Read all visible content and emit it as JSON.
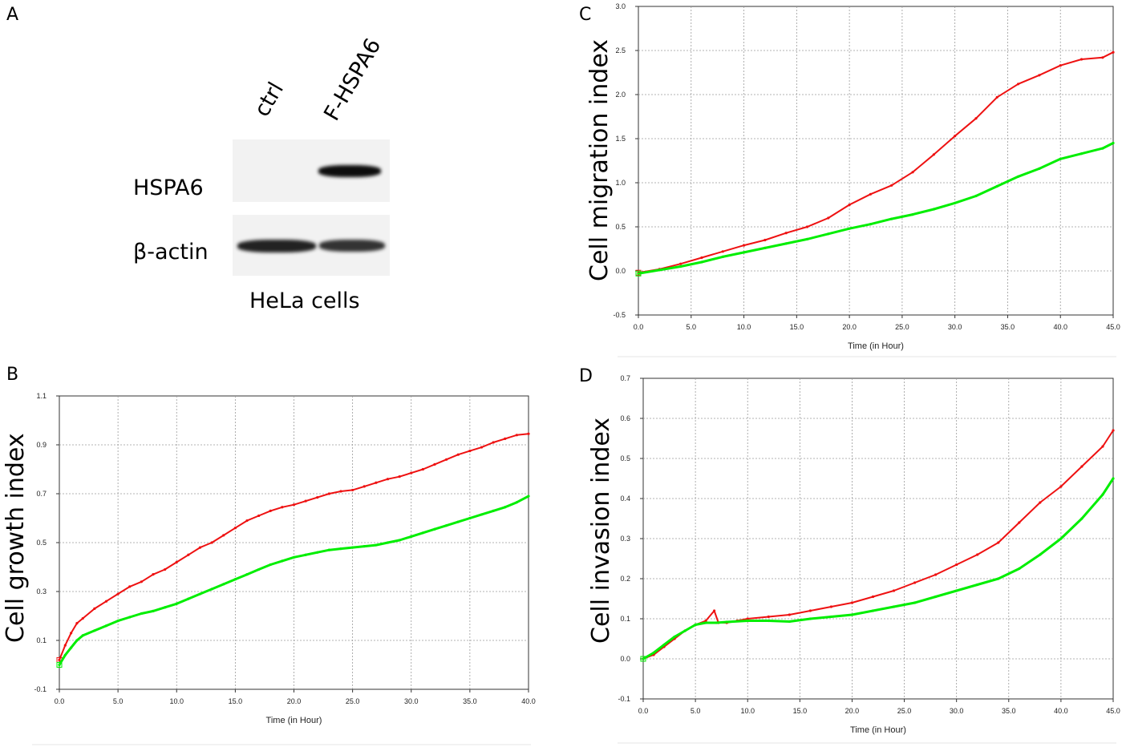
{
  "panel_a": {
    "label": "A",
    "lanes": [
      "ctrl",
      "F-HSPA6"
    ],
    "rows": [
      "HSPA6",
      "β-actin"
    ],
    "caption": "HeLa cells"
  },
  "colors": {
    "ctrl": "#00ee00",
    "f_hspa6": "#ee1111",
    "grid": "#9a9a9a"
  },
  "chart_data": [
    {
      "id": "B",
      "type": "line",
      "panel_label": "B",
      "title": "",
      "xlabel": "Time (in Hour)",
      "ylabel": "Cell growth index",
      "xlim": [
        0,
        40
      ],
      "ylim": [
        -0.1,
        1.1
      ],
      "xticks": [
        "0.0",
        "5.0",
        "10.0",
        "15.0",
        "20.0",
        "25.0",
        "30.0",
        "35.0",
        "40.0"
      ],
      "yticks": [
        "-0.1",
        "0.1",
        "0.3",
        "0.5",
        "0.7",
        "0.9",
        "1.1"
      ],
      "series": [
        {
          "name": "F-HSPA6",
          "color": "#ee1111",
          "x": [
            0,
            0.5,
            1,
            1.5,
            2,
            3,
            4,
            5,
            6,
            7,
            8,
            9,
            10,
            11,
            12,
            13,
            14,
            15,
            16,
            17,
            18,
            19,
            20,
            21,
            22,
            23,
            24,
            25,
            26,
            27,
            28,
            29,
            30,
            31,
            32,
            33,
            34,
            35,
            36,
            37,
            38,
            39,
            40
          ],
          "y": [
            0.02,
            0.08,
            0.13,
            0.17,
            0.19,
            0.23,
            0.26,
            0.29,
            0.32,
            0.34,
            0.37,
            0.39,
            0.42,
            0.45,
            0.48,
            0.5,
            0.53,
            0.56,
            0.59,
            0.61,
            0.63,
            0.645,
            0.655,
            0.67,
            0.685,
            0.7,
            0.71,
            0.715,
            0.73,
            0.745,
            0.76,
            0.77,
            0.785,
            0.8,
            0.82,
            0.84,
            0.86,
            0.875,
            0.89,
            0.91,
            0.925,
            0.94,
            0.945
          ]
        },
        {
          "name": "ctrl",
          "color": "#00ee00",
          "x": [
            0,
            0.5,
            1,
            1.5,
            2,
            3,
            4,
            5,
            6,
            7,
            8,
            9,
            10,
            11,
            12,
            13,
            14,
            15,
            16,
            17,
            18,
            19,
            20,
            21,
            22,
            23,
            24,
            25,
            26,
            27,
            28,
            29,
            30,
            31,
            32,
            33,
            34,
            35,
            36,
            37,
            38,
            39,
            40
          ],
          "y": [
            0.0,
            0.04,
            0.07,
            0.1,
            0.12,
            0.14,
            0.16,
            0.18,
            0.195,
            0.21,
            0.22,
            0.235,
            0.25,
            0.27,
            0.29,
            0.31,
            0.33,
            0.35,
            0.37,
            0.39,
            0.41,
            0.425,
            0.44,
            0.45,
            0.46,
            0.47,
            0.475,
            0.48,
            0.485,
            0.49,
            0.5,
            0.51,
            0.525,
            0.54,
            0.555,
            0.57,
            0.585,
            0.6,
            0.615,
            0.63,
            0.645,
            0.665,
            0.69
          ]
        }
      ]
    },
    {
      "id": "C",
      "type": "line",
      "panel_label": "C",
      "title": "",
      "xlabel": "Time (in Hour)",
      "ylabel": "Cell migration index",
      "xlim": [
        0,
        45
      ],
      "ylim": [
        -0.5,
        3.0
      ],
      "xticks": [
        "0.0",
        "5.0",
        "10.0",
        "15.0",
        "20.0",
        "25.0",
        "30.0",
        "35.0",
        "40.0",
        "45.0"
      ],
      "yticks": [
        "-0.5",
        "0.0",
        "0.5",
        "1.0",
        "1.5",
        "2.0",
        "2.5",
        "3.0"
      ],
      "series": [
        {
          "name": "F-HSPA6",
          "color": "#ee1111",
          "x": [
            0,
            2,
            4,
            6,
            8,
            10,
            12,
            14,
            16,
            18,
            20,
            22,
            24,
            26,
            28,
            30,
            32,
            34,
            36,
            38,
            40,
            42,
            44,
            45
          ],
          "y": [
            -0.02,
            0.02,
            0.08,
            0.15,
            0.22,
            0.29,
            0.35,
            0.43,
            0.5,
            0.6,
            0.75,
            0.87,
            0.97,
            1.12,
            1.32,
            1.53,
            1.73,
            1.97,
            2.12,
            2.22,
            2.33,
            2.4,
            2.42,
            2.48
          ]
        },
        {
          "name": "ctrl",
          "color": "#00ee00",
          "x": [
            0,
            2,
            4,
            6,
            8,
            10,
            12,
            14,
            16,
            18,
            20,
            22,
            24,
            26,
            28,
            30,
            32,
            34,
            36,
            38,
            40,
            42,
            44,
            45
          ],
          "y": [
            -0.03,
            0.01,
            0.05,
            0.1,
            0.16,
            0.21,
            0.26,
            0.31,
            0.36,
            0.42,
            0.48,
            0.53,
            0.59,
            0.64,
            0.7,
            0.77,
            0.85,
            0.96,
            1.07,
            1.16,
            1.27,
            1.33,
            1.39,
            1.45
          ]
        }
      ]
    },
    {
      "id": "D",
      "type": "line",
      "panel_label": "D",
      "title": "",
      "xlabel": "Time (in Hour)",
      "ylabel": "Cell invasion index",
      "xlim": [
        0,
        45
      ],
      "ylim": [
        -0.1,
        0.7
      ],
      "xticks": [
        "0.0",
        "5.0",
        "10.0",
        "15.0",
        "20.0",
        "25.0",
        "30.0",
        "35.0",
        "40.0",
        "45.0"
      ],
      "yticks": [
        "-0.1",
        "0.0",
        "0.1",
        "0.2",
        "0.3",
        "0.4",
        "0.5",
        "0.6",
        "0.7"
      ],
      "series": [
        {
          "name": "F-HSPA6",
          "color": "#ee1111",
          "x": [
            0,
            1,
            2,
            3,
            4,
            5,
            6,
            6.8,
            7.2,
            8,
            9,
            10,
            12,
            14,
            16,
            18,
            20,
            22,
            24,
            26,
            28,
            30,
            32,
            34,
            36,
            38,
            40,
            42,
            44,
            45
          ],
          "y": [
            0.0,
            0.01,
            0.03,
            0.05,
            0.07,
            0.085,
            0.095,
            0.12,
            0.09,
            0.09,
            0.095,
            0.1,
            0.105,
            0.11,
            0.12,
            0.13,
            0.14,
            0.155,
            0.17,
            0.19,
            0.21,
            0.235,
            0.26,
            0.29,
            0.34,
            0.39,
            0.43,
            0.48,
            0.53,
            0.57
          ]
        },
        {
          "name": "ctrl",
          "color": "#00ee00",
          "x": [
            0,
            1,
            2,
            3,
            4,
            5,
            6,
            7,
            8,
            10,
            12,
            14,
            16,
            18,
            20,
            22,
            24,
            26,
            28,
            30,
            32,
            34,
            36,
            38,
            40,
            42,
            44,
            45
          ],
          "y": [
            0.0,
            0.015,
            0.035,
            0.055,
            0.07,
            0.085,
            0.09,
            0.09,
            0.092,
            0.095,
            0.095,
            0.093,
            0.1,
            0.105,
            0.11,
            0.12,
            0.13,
            0.14,
            0.155,
            0.17,
            0.185,
            0.2,
            0.225,
            0.26,
            0.3,
            0.35,
            0.41,
            0.45
          ]
        }
      ]
    }
  ]
}
